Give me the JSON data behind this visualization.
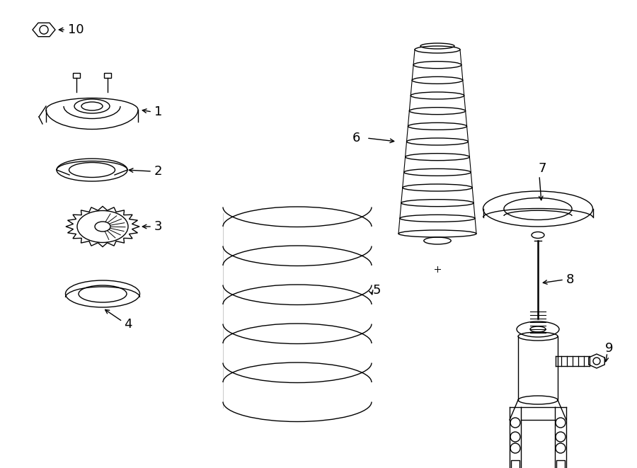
{
  "background_color": "#ffffff",
  "line_color": "#000000",
  "lw": 1.0,
  "figsize": [
    9.0,
    6.61
  ],
  "dpi": 100
}
